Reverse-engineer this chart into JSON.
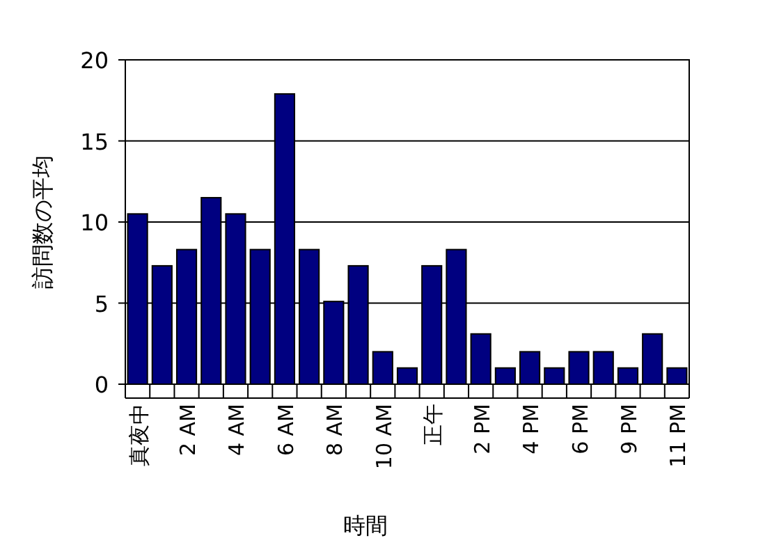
{
  "chart_data": {
    "type": "bar",
    "xlabel": "時間",
    "ylabel": "訪問数の平均",
    "categories": [
      "真夜中",
      null,
      "2 AM",
      null,
      "4 AM",
      null,
      "6 AM",
      null,
      "8 AM",
      null,
      "10 AM",
      null,
      "正午",
      null,
      "2 PM",
      null,
      "4 PM",
      null,
      "6 PM",
      null,
      "9 PM",
      null,
      "11 PM"
    ],
    "values": [
      10.5,
      7.3,
      8.3,
      11.5,
      10.5,
      8.3,
      17.9,
      8.3,
      5.1,
      7.3,
      2,
      1,
      7.3,
      8.3,
      3.1,
      1,
      2,
      1,
      2,
      2,
      1,
      3.1,
      1
    ],
    "color": "#000080",
    "ylim": [
      0,
      20
    ],
    "yticks": [
      0,
      5,
      10,
      15,
      20
    ],
    "grid": "y"
  }
}
